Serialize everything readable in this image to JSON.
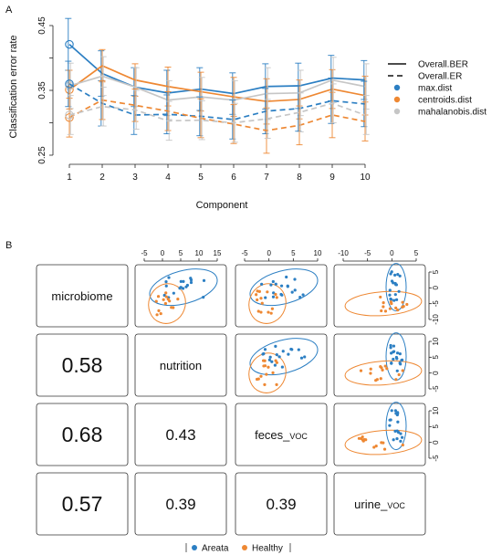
{
  "panel_a_label": "A",
  "panel_b_label": "B",
  "colors": {
    "max": "#2c7fc3",
    "centroids": "#ee8833",
    "mahalanobis": "#c6c6c6"
  },
  "chart_data": [
    {
      "type": "line",
      "xlabel": "Component",
      "ylabel": "Classification error rate",
      "x": [
        1,
        2,
        3,
        4,
        5,
        6,
        7,
        8,
        9,
        10
      ],
      "ylim": [
        0.25,
        0.45
      ],
      "yticks": [
        0.25,
        0.3,
        0.35,
        0.4,
        0.45
      ],
      "ytick_labels": [
        "0.25",
        "",
        "0.35",
        "",
        "0.45"
      ],
      "legend": {
        "lines": [
          {
            "label": "Overall.BER",
            "style": "solid"
          },
          {
            "label": "Overall.ER",
            "style": "dashed"
          }
        ],
        "points": [
          {
            "label": "max.dist",
            "color": "#2c7fc3"
          },
          {
            "label": "centroids.dist",
            "color": "#ee8833"
          },
          {
            "label": "mahalanobis.dist",
            "color": "#c6c6c6"
          }
        ]
      },
      "series": [
        {
          "name": "max.dist",
          "style": "solid",
          "color": "#2c7fc3",
          "values": [
            0.421,
            0.376,
            0.355,
            0.346,
            0.352,
            0.345,
            0.356,
            0.357,
            0.369,
            0.366
          ],
          "error": [
            0.04,
            0.035,
            0.03,
            0.035,
            0.033,
            0.032,
            0.035,
            0.035,
            0.035,
            0.03
          ]
        },
        {
          "name": "centroids.dist",
          "style": "solid",
          "color": "#ee8833",
          "values": [
            0.351,
            0.388,
            0.366,
            0.356,
            0.348,
            0.34,
            0.333,
            0.336,
            0.352,
            0.342
          ],
          "error": [
            0.03,
            0.025,
            0.025,
            0.03,
            0.03,
            0.03,
            0.035,
            0.03,
            0.03,
            0.03
          ]
        },
        {
          "name": "mahalanobis.dist",
          "style": "solid",
          "color": "#c6c6c6",
          "values": [
            0.357,
            0.372,
            0.355,
            0.335,
            0.34,
            0.335,
            0.345,
            0.346,
            0.366,
            0.356
          ],
          "error": [
            0.035,
            0.03,
            0.03,
            0.03,
            0.03,
            0.03,
            0.04,
            0.035,
            0.035,
            0.035
          ]
        },
        {
          "name": "max.dist",
          "style": "dashed",
          "color": "#2c7fc3",
          "values": [
            0.36,
            0.33,
            0.312,
            0.313,
            0.31,
            0.305,
            0.318,
            0.322,
            0.334,
            0.329
          ],
          "error": [
            0.035,
            0.035,
            0.03,
            0.03,
            0.03,
            0.03,
            0.035,
            0.035,
            0.035,
            0.035
          ]
        },
        {
          "name": "centroids.dist",
          "style": "dashed",
          "color": "#ee8833",
          "values": [
            0.308,
            0.335,
            0.327,
            0.318,
            0.307,
            0.298,
            0.288,
            0.296,
            0.312,
            0.302
          ],
          "error": [
            0.03,
            0.03,
            0.025,
            0.03,
            0.03,
            0.03,
            0.035,
            0.03,
            0.035,
            0.03
          ]
        },
        {
          "name": "mahalanobis.dist",
          "style": "dashed",
          "color": "#c6c6c6",
          "values": [
            0.312,
            0.325,
            0.32,
            0.303,
            0.304,
            0.3,
            0.306,
            0.316,
            0.33,
            0.312
          ],
          "error": [
            0.03,
            0.03,
            0.03,
            0.03,
            0.03,
            0.03,
            0.03,
            0.03,
            0.03,
            0.03
          ]
        }
      ]
    },
    {
      "type": "scatter",
      "blocks": [
        "microbiome",
        "nutrition",
        "feces_voc",
        "urine_voc"
      ],
      "block_labels": [
        {
          "main": "microbiome",
          "sub": ""
        },
        {
          "main": "nutrition",
          "sub": ""
        },
        {
          "main": "feces_",
          "sub": "VOC"
        },
        {
          "main": "urine_",
          "sub": "VOC"
        }
      ],
      "correlations": [
        {
          "row": 1,
          "col": 0,
          "value": "0.58"
        },
        {
          "row": 2,
          "col": 0,
          "value": "0.68"
        },
        {
          "row": 3,
          "col": 0,
          "value": "0.57"
        },
        {
          "row": 2,
          "col": 1,
          "value": "0.43"
        },
        {
          "row": 3,
          "col": 1,
          "value": "0.39"
        },
        {
          "row": 3,
          "col": 2,
          "value": "0.39"
        }
      ],
      "top_ticks": [
        {
          "col": 1,
          "labels": [
            "-5",
            "0",
            "5",
            "10",
            "15"
          ]
        },
        {
          "col": 2,
          "labels": [
            "-5",
            "0",
            "5",
            "10"
          ]
        },
        {
          "col": 3,
          "labels": [
            "-10",
            "-5",
            "0",
            "5"
          ]
        }
      ],
      "right_ticks": [
        {
          "row": 0,
          "labels": [
            "5",
            "0",
            "-5",
            "-10"
          ]
        },
        {
          "row": 1,
          "labels": [
            "10",
            "5",
            "0",
            "-5"
          ]
        },
        {
          "row": 2,
          "labels": [
            "10",
            "5",
            "0",
            "-5"
          ]
        }
      ],
      "legend": [
        {
          "label": "Areata",
          "color": "#2c7fc3"
        },
        {
          "label": "Healthy",
          "color": "#ee8833"
        }
      ]
    }
  ]
}
